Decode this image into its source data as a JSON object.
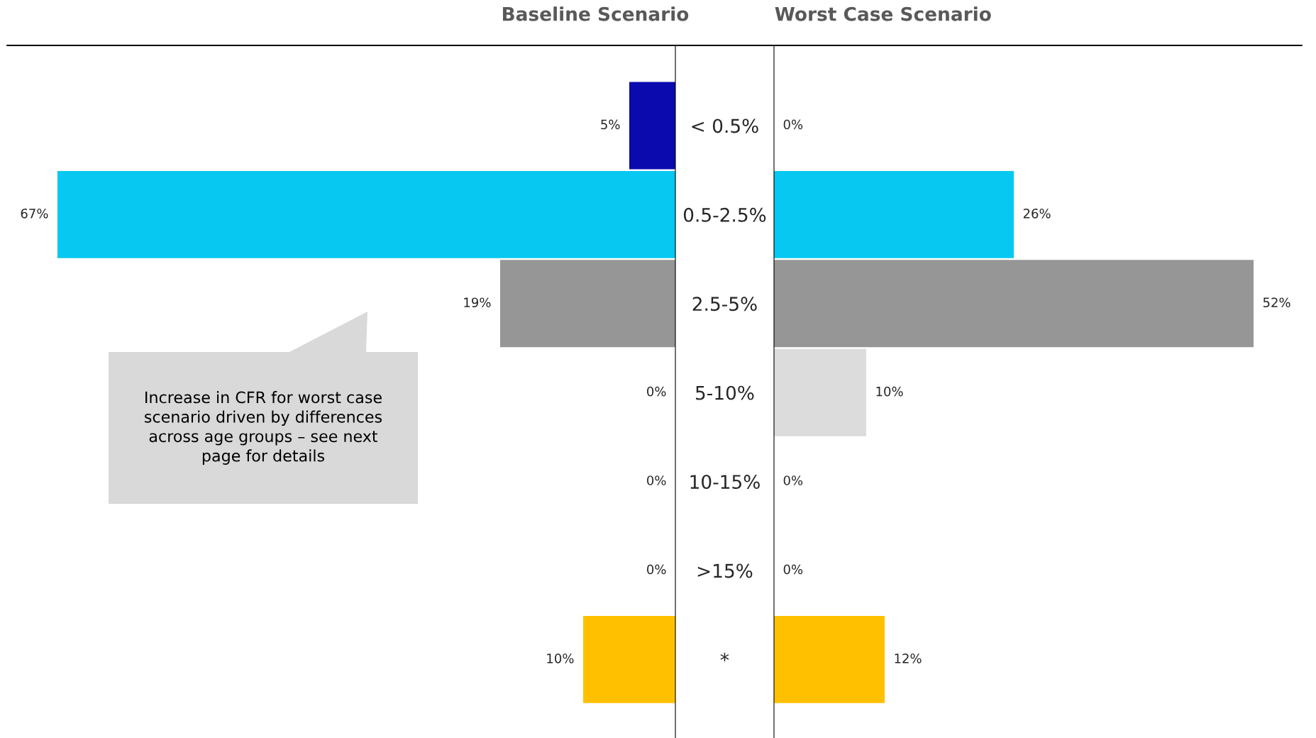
{
  "chart_data": [
    {
      "type": "bar",
      "orientation": "horizontal",
      "title": "Baseline Scenario",
      "categories": [
        "< 0.5%",
        "0.5-2.5%",
        "2.5-5%",
        "5-10%",
        "10-15%",
        ">15%",
        "*"
      ],
      "values": [
        5,
        67,
        19,
        0,
        0,
        0,
        10
      ],
      "colors": [
        "#0a0aaf",
        "#06c8f0",
        "#969696",
        "#dcdcdc",
        "#dcdcdc",
        "#dcdcdc",
        "#ffc000"
      ],
      "value_labels": [
        "5%",
        "67%",
        "19%",
        "0%",
        "0%",
        "0%",
        "10%"
      ],
      "tick_labels": "y",
      "annotations": [
        "Increase in CFR for worst case\nscenario driven by differences\nacross age groups – see next\npage for details"
      ]
    },
    {
      "type": "bar",
      "orientation": "horizontal",
      "title": "Worst Case Scenario",
      "values": [
        0,
        26,
        52,
        10,
        0,
        0,
        12
      ],
      "colors": [
        "#0a0aaf",
        "#06c8f0",
        "#969696",
        "#dcdcdc",
        "#dcdcdc",
        "#dcdcdc",
        "#ffc000"
      ],
      "value_labels": [
        "0%",
        "26%",
        "52%",
        "10%",
        "0%",
        "0%",
        "12%"
      ],
      "tick_labels": false
    }
  ]
}
